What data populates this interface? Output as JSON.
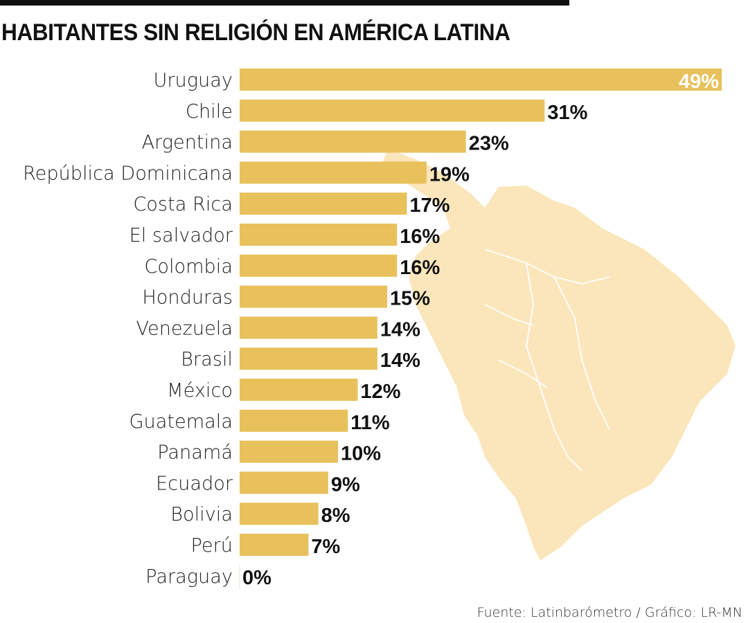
{
  "title": "HABITANTES SIN RELIGIÓN EN AMÉRICA LATINA",
  "source": "Fuente: Latinbarómetro / Gráfico: LR-MN",
  "colors": {
    "bar": "#e8c15c",
    "map": "#fbe6bb",
    "text": "#111111",
    "inside_label": "#ffffff"
  },
  "chart_data": {
    "type": "bar",
    "orientation": "horizontal",
    "title": "HABITANTES SIN RELIGIÓN EN AMÉRICA LATINA",
    "xlabel": "",
    "ylabel": "",
    "unit": "%",
    "xlim": [
      0,
      49
    ],
    "grid": false,
    "legend": "none",
    "categories": [
      "Uruguay",
      "Chile",
      "Argentina",
      "República Dominicana",
      "Costa Rica",
      "El salvador",
      "Colombia",
      "Honduras",
      "Venezuela",
      "Brasil",
      "México",
      "Guatemala",
      "Panamá",
      "Ecuador",
      "Bolivia",
      "Perú",
      "Paraguay"
    ],
    "values": [
      49,
      31,
      23,
      19,
      17,
      16,
      16,
      15,
      14,
      14,
      12,
      11,
      10,
      9,
      8,
      7,
      0
    ],
    "labels": [
      "49%",
      "31%",
      "23%",
      "19%",
      "17%",
      "16%",
      "16%",
      "15%",
      "14%",
      "14%",
      "12%",
      "11%",
      "10%",
      "9%",
      "8%",
      "7%",
      "0%"
    ],
    "annotations": [
      "Fuente: Latinbarómetro / Gráfico: LR-MN"
    ]
  }
}
